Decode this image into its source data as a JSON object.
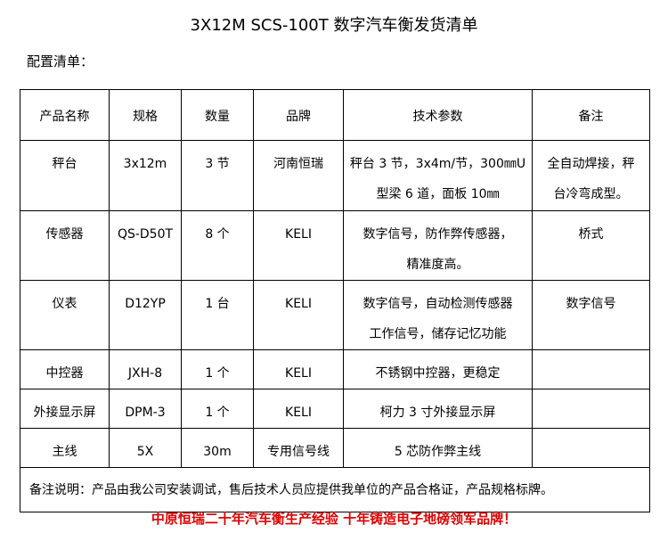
{
  "title": "3X12M SCS-100T 数字汽车衡发货清单",
  "subtitle": "配置清单：",
  "table": {
    "header": [
      "产品名称",
      "规格",
      "数量",
      "品牌",
      "技术参数",
      "备注"
    ],
    "rows": [
      [
        "秤台",
        "3x12m",
        "3 节",
        "河南恒瑞",
        [
          "秤台 3 节，3x4m/节，300㎜U",
          "型梁 6 道，面板 10㎜"
        ],
        [
          "全自动焊接，秤",
          "台冷弯成型。"
        ]
      ],
      [
        "传感器",
        "QS-D50T",
        "8 个",
        "KELI",
        [
          "数字信号，防作弊传感器，",
          "精准度高。"
        ],
        "桥式"
      ],
      [
        "仪表",
        "D12YP",
        "1 台",
        "KELI",
        [
          "数字信号，自动检测传感器",
          "工作信号，储存记忆功能"
        ],
        "数字信号"
      ],
      [
        "中控器",
        "JXH-8",
        "1 个",
        "KELI",
        "不锈钢中控器，更稳定"
      ],
      [
        "外接显示屏",
        "DPM-3",
        "1 个",
        "KELI",
        "柯力 3 寸外接显示屏"
      ],
      [
        "主线",
        "5X",
        "30m",
        "专用信号线",
        "5 芯防作弊主线"
      ]
    ],
    "note": "备注说明：产品由我公司安装调试，售后技术人员应提供我单位的产品合格证，产品规格标牌。"
  },
  "footer": "中原恒瑞二十年汽车衡生产经验 十年铸造电子地磅领军品牌！"
}
